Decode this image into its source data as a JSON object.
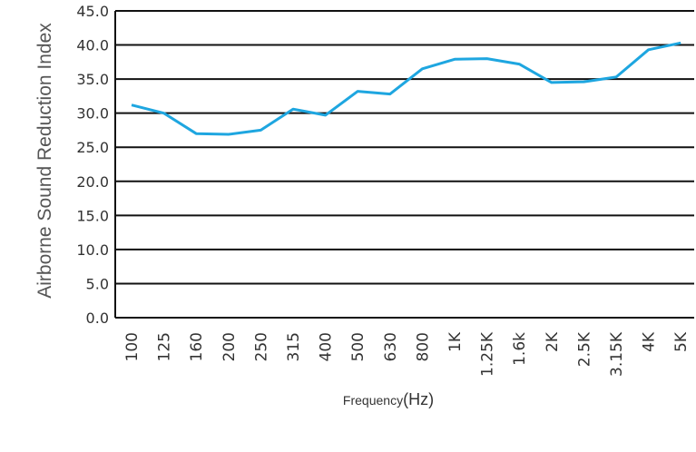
{
  "chart_data": {
    "type": "line",
    "title": "",
    "ylabel": "Airborne Sound Reduction Index",
    "xlabel": "Frequency",
    "xlabel_unit": "(Hz)",
    "ylim": [
      0,
      45
    ],
    "y_ticks": [
      "0.0",
      "5.0",
      "10.0",
      "15.0",
      "20.0",
      "25.0",
      "30.0",
      "35.0",
      "40.0",
      "45.0"
    ],
    "grid": "horizontal",
    "categories": [
      "100",
      "125",
      "160",
      "200",
      "250",
      "315",
      "400",
      "500",
      "630",
      "800",
      "1K",
      "1.25K",
      "1.6k",
      "2K",
      "2.5K",
      "3.15K",
      "4K",
      "5K"
    ],
    "series": [
      {
        "color": "#1ea6e0",
        "values": [
          31.2,
          30.0,
          27.0,
          26.9,
          27.5,
          30.6,
          29.7,
          33.2,
          32.8,
          36.5,
          37.9,
          38.0,
          37.2,
          34.5,
          34.6,
          35.3,
          39.3,
          40.3
        ]
      }
    ]
  }
}
